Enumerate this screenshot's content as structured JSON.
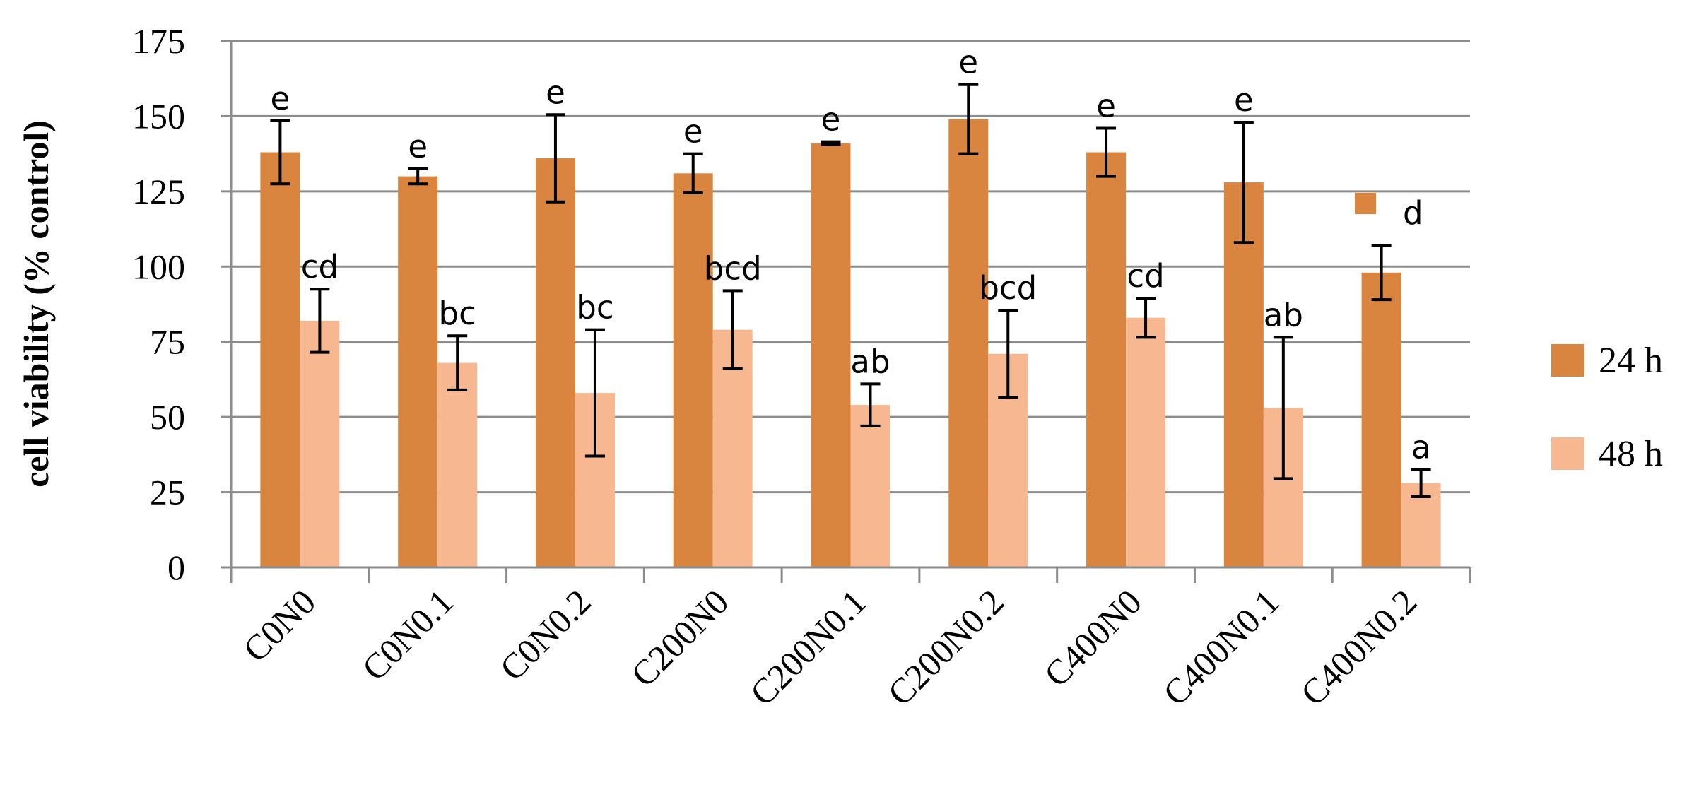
{
  "chart_data": {
    "type": "bar",
    "title": "",
    "xlabel": "",
    "ylabel": "cell viability (% control)",
    "ylim": [
      0,
      175
    ],
    "yticks": [
      0,
      25,
      50,
      75,
      100,
      125,
      150,
      175
    ],
    "grid": true,
    "legend_position": "right",
    "categories": [
      "C0N0",
      "C0N0.1",
      "C0N0.2",
      "C200N0",
      "C200N0.1",
      "C200N0.2",
      "C400N0",
      "C400N0.1",
      "C400N0.2"
    ],
    "series": [
      {
        "name": "24 h",
        "color": "#D9843F",
        "values": [
          138,
          130,
          136,
          131,
          141,
          149,
          138,
          128,
          98
        ],
        "errors": [
          10.5,
          2.5,
          14.5,
          6.5,
          0.5,
          11.5,
          8,
          20,
          9
        ],
        "labels": [
          "e",
          "e",
          "e",
          "e",
          "e",
          "e",
          "e",
          "e",
          "d"
        ]
      },
      {
        "name": "48 h",
        "color": "#F7B891",
        "values": [
          82,
          68,
          58,
          79,
          54,
          71,
          83,
          53,
          28
        ],
        "errors": [
          10.5,
          9,
          21,
          13,
          7,
          14.5,
          6.5,
          23.5,
          4.5
        ],
        "labels": [
          "cd",
          "bc",
          "bc",
          "bcd",
          "ab",
          "bcd",
          "cd",
          "ab",
          "a"
        ]
      }
    ]
  }
}
